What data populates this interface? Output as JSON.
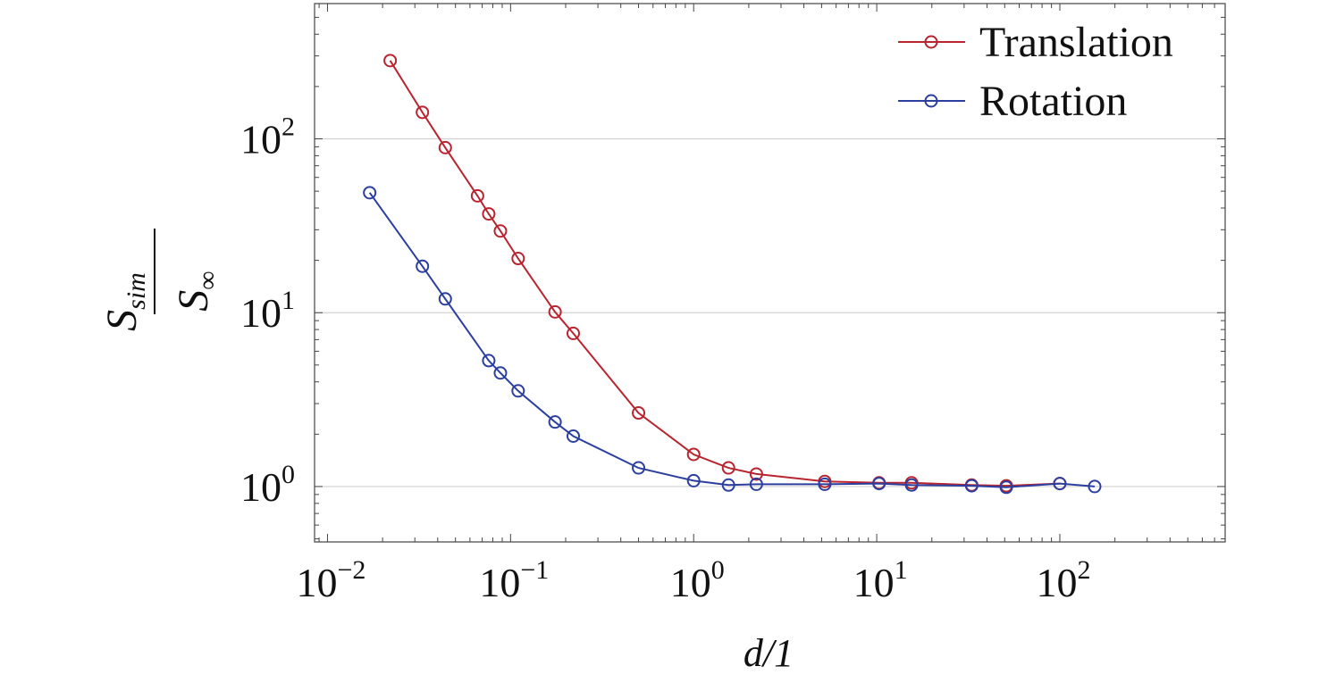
{
  "chart_data": {
    "type": "line",
    "xscale": "log",
    "yscale": "log",
    "xlim": [
      0.0085,
      800
    ],
    "ylim": [
      0.48,
      600
    ],
    "grid": "horizontal at decades",
    "legend_position": "top-right",
    "xlabel": "d/1",
    "ylabel": {
      "numerator": "S",
      "numerator_sub": "sim",
      "denominator": "S",
      "denominator_sub": "∞"
    },
    "xticks": [
      {
        "base": "10",
        "exp": "−2",
        "value": 0.01
      },
      {
        "base": "10",
        "exp": "−1",
        "value": 0.1
      },
      {
        "base": "10",
        "exp": "0",
        "value": 1
      },
      {
        "base": "10",
        "exp": "1",
        "value": 10
      },
      {
        "base": "10",
        "exp": "2",
        "value": 100
      }
    ],
    "yticks": [
      {
        "base": "10",
        "exp": "0",
        "value": 1
      },
      {
        "base": "10",
        "exp": "1",
        "value": 10
      },
      {
        "base": "10",
        "exp": "2",
        "value": 100
      }
    ],
    "series": [
      {
        "name": "Translation",
        "color": "#b8242f",
        "x": [
          0.022,
          0.033,
          0.044,
          0.066,
          0.076,
          0.088,
          0.11,
          0.175,
          0.22,
          0.5,
          1.0,
          1.55,
          2.2,
          5.2,
          10.3,
          15.5,
          33,
          51,
          100
        ],
        "y": [
          282,
          142,
          89,
          47,
          37,
          29.5,
          20.5,
          10.1,
          7.6,
          2.65,
          1.53,
          1.28,
          1.18,
          1.07,
          1.05,
          1.05,
          1.02,
          1.01,
          1.04
        ]
      },
      {
        "name": "Rotation",
        "color": "#2c3f9e",
        "x": [
          0.017,
          0.033,
          0.044,
          0.076,
          0.088,
          0.11,
          0.175,
          0.22,
          0.5,
          1.0,
          1.55,
          2.2,
          5.2,
          10.3,
          15.5,
          33,
          51,
          100,
          155
        ],
        "y": [
          49,
          18.5,
          12.0,
          5.3,
          4.5,
          3.55,
          2.35,
          1.95,
          1.28,
          1.08,
          1.02,
          1.03,
          1.03,
          1.04,
          1.02,
          1.01,
          0.99,
          1.04,
          1.0
        ]
      }
    ]
  }
}
